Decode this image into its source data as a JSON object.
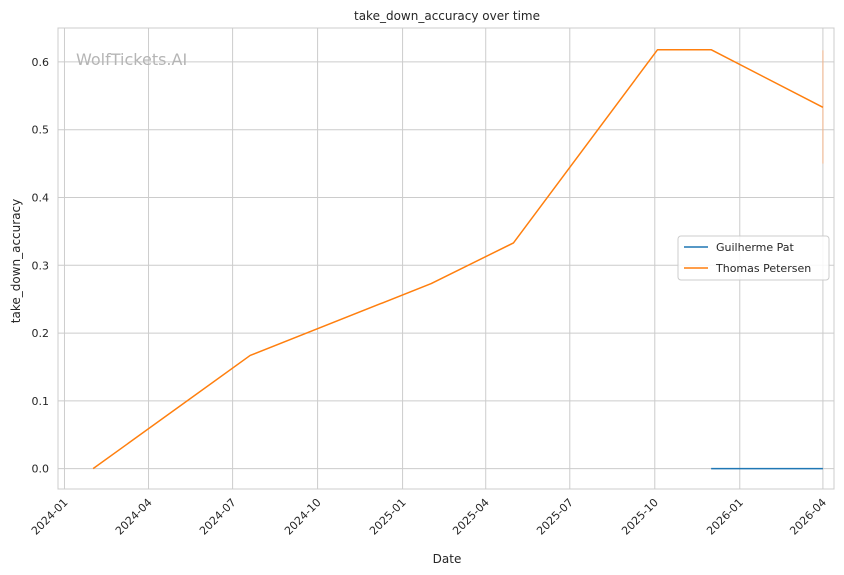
{
  "chart_data": {
    "type": "line",
    "title": "take_down_accuracy over time",
    "xlabel": "Date",
    "ylabel": "take_down_accuracy",
    "watermark": "WolfTickets.AI",
    "x_ticks": [
      "2024-01",
      "2024-04",
      "2024-07",
      "2024-10",
      "2025-01",
      "2025-04",
      "2025-07",
      "2025-10",
      "2026-01",
      "2026-04"
    ],
    "y_ticks": [
      "0.0",
      "0.1",
      "0.2",
      "0.3",
      "0.4",
      "0.5",
      "0.6"
    ],
    "xlim": [
      "2023-12-25",
      "2026-04-13"
    ],
    "ylim": [
      -0.03,
      0.65
    ],
    "grid": true,
    "legend_position": "center-right",
    "series": [
      {
        "name": "Guilherme Pat",
        "color": "#1f77b4",
        "points": [
          [
            "2025-12-01",
            0.0
          ],
          [
            "2026-04-01",
            0.0
          ]
        ]
      },
      {
        "name": "Thomas Petersen",
        "color": "#ff7f0e",
        "points": [
          [
            "2024-02-01",
            0.0
          ],
          [
            "2024-07-20",
            0.167
          ],
          [
            "2025-02-01",
            0.273
          ],
          [
            "2025-05-01",
            0.333
          ],
          [
            "2025-10-04",
            0.618
          ],
          [
            "2025-12-01",
            0.618
          ],
          [
            "2026-04-01",
            0.533
          ]
        ]
      }
    ],
    "error_bar": {
      "color": "#f2b48a",
      "x": "2026-04-01",
      "low": 0.45,
      "high": 0.617
    }
  }
}
